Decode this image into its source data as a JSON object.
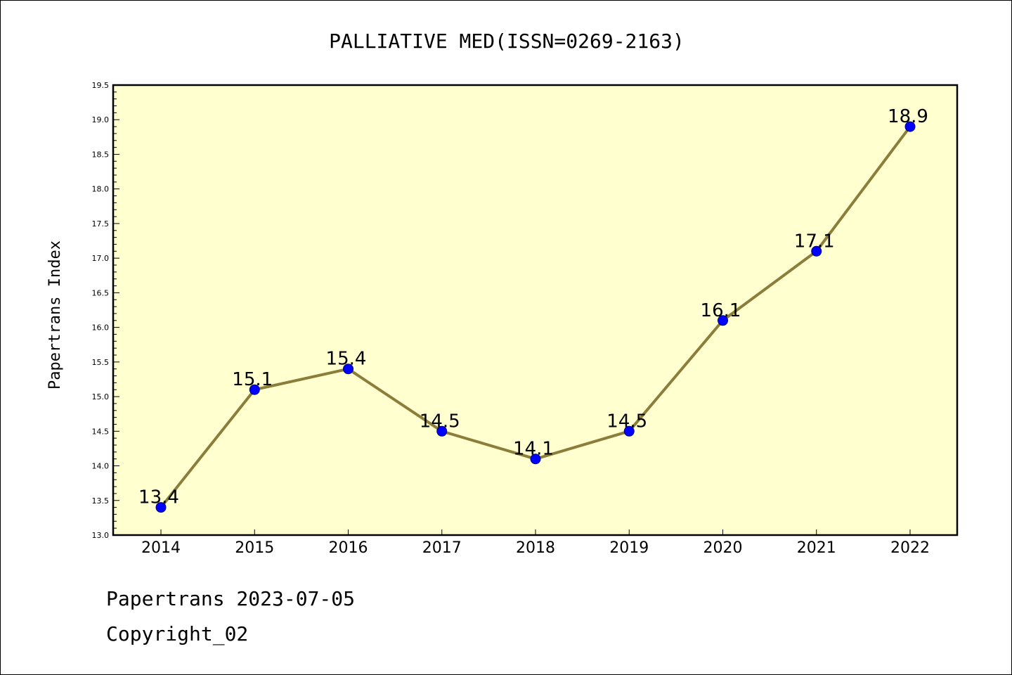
{
  "chart_data": {
    "type": "line",
    "title": "PALLIATIVE MED(ISSN=0269-2163)",
    "xlabel": "",
    "ylabel": "Papertrans Index",
    "categories": [
      "2014",
      "2015",
      "2016",
      "2017",
      "2018",
      "2019",
      "2020",
      "2021",
      "2022"
    ],
    "series": [
      {
        "values": [
          13.4,
          15.1,
          15.4,
          14.5,
          14.1,
          14.5,
          16.1,
          17.1,
          18.9
        ]
      }
    ],
    "ylim": [
      13.0,
      19.5
    ],
    "yticks": [
      "13.0",
      "13.5",
      "14.0",
      "14.5",
      "15.0",
      "15.5",
      "16.0",
      "16.5",
      "17.0",
      "17.5",
      "18.0",
      "18.5",
      "19.0",
      "19.5"
    ],
    "data_labels": [
      "13.4",
      "15.1",
      "15.4",
      "14.5",
      "14.1",
      "14.5",
      "16.1",
      "17.1",
      "18.9"
    ],
    "grid": false,
    "legend": "none",
    "colors": {
      "plot_background": "#FFFFD0",
      "line": "#8B7D3A",
      "marker": "#0000FF",
      "marker_edge": "#000080"
    }
  },
  "footer": {
    "line1": "Papertrans 2023-07-05",
    "line2": "Copyright_02"
  }
}
